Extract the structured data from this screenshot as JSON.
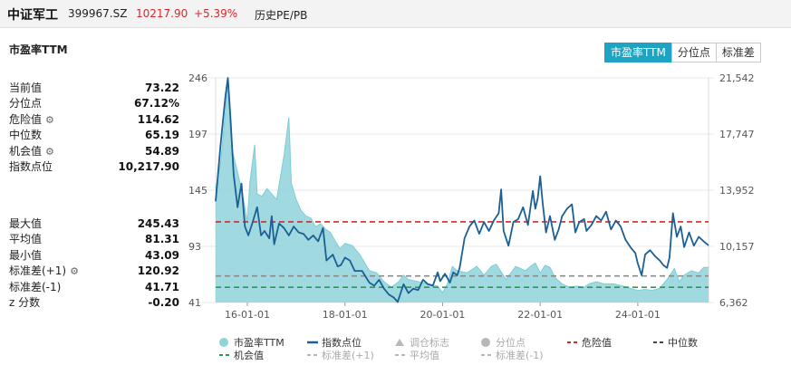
{
  "header": {
    "name": "中证军工",
    "code": "399967.SZ",
    "price": "10217.90",
    "change": "+5.39%",
    "history_link": "历史PE/PB",
    "up_color": "#d9262c"
  },
  "panel": {
    "title": "市盈率TTM",
    "tabs": [
      {
        "label": "市盈率TTM",
        "active": true
      },
      {
        "label": "分位点",
        "active": false
      },
      {
        "label": "标准差",
        "active": false
      }
    ]
  },
  "stats_top": [
    {
      "label": "当前值",
      "value": "73.22",
      "gear": false
    },
    {
      "label": "分位点",
      "value": "67.12%",
      "gear": false
    },
    {
      "label": "危险值",
      "value": "114.62",
      "gear": true
    },
    {
      "label": "中位数",
      "value": "65.19",
      "gear": false
    },
    {
      "label": "机会值",
      "value": "54.89",
      "gear": true
    },
    {
      "label": "指数点位",
      "value": "10,217.90",
      "gear": false
    }
  ],
  "stats_bottom": [
    {
      "label": "最大值",
      "value": "245.43",
      "gear": false
    },
    {
      "label": "平均值",
      "value": "81.31",
      "gear": false
    },
    {
      "label": "最小值",
      "value": "43.09",
      "gear": false
    },
    {
      "label": "标准差(+1)",
      "value": "120.92",
      "gear": true
    },
    {
      "label": "标准差(-1)",
      "value": "41.71",
      "gear": false
    },
    {
      "label": "z 分数",
      "value": "-0.20",
      "gear": false
    }
  ],
  "chart_data": {
    "type": "area",
    "x_ticks": [
      "16-01-01",
      "18-01-01",
      "20-01-01",
      "22-01-01",
      "24-01-01"
    ],
    "x_tick_years": [
      2016,
      2018,
      2020,
      2022,
      2024
    ],
    "x_range": [
      2015.35,
      2025.45
    ],
    "y_left_ticks": [
      "246",
      "197",
      "145",
      "93",
      "41"
    ],
    "y_left_range": [
      41,
      246
    ],
    "y_right_ticks": [
      "21,542",
      "17,747",
      "13,952",
      "10,157",
      "6,362"
    ],
    "y_right_range": [
      6362,
      21542
    ],
    "grid": "horizontal",
    "legend_position": "bottom",
    "colors": {
      "pe_fill": "#8fd3db",
      "pe_line": "#7ccdd6",
      "index_line": "#1b5f95",
      "danger": "#d12a2a",
      "median": "#8a8a8a",
      "opportunity": "#2e9a4e",
      "grid": "#e8e8e8",
      "disabled": "#b8b8b8"
    },
    "lines": {
      "danger": 114.62,
      "median": 65.19,
      "opportunity": 54.89
    },
    "series": [
      {
        "name": "市盈率TTM",
        "axis": "left",
        "points": [
          [
            2015.35,
            145
          ],
          [
            2015.45,
            168
          ],
          [
            2015.55,
            215
          ],
          [
            2015.6,
            246
          ],
          [
            2015.65,
            200
          ],
          [
            2015.7,
            178
          ],
          [
            2015.8,
            160
          ],
          [
            2015.9,
            140
          ],
          [
            2016.0,
            115
          ],
          [
            2016.05,
            150
          ],
          [
            2016.15,
            185
          ],
          [
            2016.2,
            140
          ],
          [
            2016.3,
            138
          ],
          [
            2016.4,
            145
          ],
          [
            2016.5,
            140
          ],
          [
            2016.6,
            135
          ],
          [
            2016.75,
            175
          ],
          [
            2016.85,
            210
          ],
          [
            2016.9,
            150
          ],
          [
            2017.0,
            135
          ],
          [
            2017.1,
            125
          ],
          [
            2017.2,
            120
          ],
          [
            2017.3,
            118
          ],
          [
            2017.4,
            110
          ],
          [
            2017.5,
            113
          ],
          [
            2017.6,
            108
          ],
          [
            2017.7,
            105
          ],
          [
            2017.8,
            97
          ],
          [
            2017.9,
            90
          ],
          [
            2018.0,
            95
          ],
          [
            2018.15,
            93
          ],
          [
            2018.3,
            85
          ],
          [
            2018.5,
            70
          ],
          [
            2018.65,
            68
          ],
          [
            2018.8,
            60
          ],
          [
            2018.95,
            55
          ],
          [
            2019.1,
            60
          ],
          [
            2019.2,
            66
          ],
          [
            2019.3,
            62
          ],
          [
            2019.5,
            60
          ],
          [
            2019.7,
            58
          ],
          [
            2019.9,
            56
          ],
          [
            2020.0,
            50
          ],
          [
            2020.1,
            58
          ],
          [
            2020.2,
            74
          ],
          [
            2020.3,
            70
          ],
          [
            2020.5,
            68
          ],
          [
            2020.7,
            74
          ],
          [
            2020.85,
            66
          ],
          [
            2021.0,
            74
          ],
          [
            2021.1,
            76
          ],
          [
            2021.3,
            62
          ],
          [
            2021.5,
            74
          ],
          [
            2021.7,
            70
          ],
          [
            2021.8,
            74
          ],
          [
            2021.9,
            77
          ],
          [
            2022.0,
            68
          ],
          [
            2022.1,
            75
          ],
          [
            2022.2,
            73
          ],
          [
            2022.3,
            64
          ],
          [
            2022.45,
            58
          ],
          [
            2022.6,
            55
          ],
          [
            2022.75,
            56
          ],
          [
            2022.9,
            55
          ],
          [
            2023.0,
            58
          ],
          [
            2023.15,
            60
          ],
          [
            2023.3,
            58
          ],
          [
            2023.5,
            58
          ],
          [
            2023.7,
            56
          ],
          [
            2023.85,
            54
          ],
          [
            2024.0,
            52
          ],
          [
            2024.15,
            53
          ],
          [
            2024.3,
            52
          ],
          [
            2024.45,
            54
          ],
          [
            2024.6,
            62
          ],
          [
            2024.75,
            72
          ],
          [
            2024.85,
            60
          ],
          [
            2024.95,
            66
          ],
          [
            2025.1,
            70
          ],
          [
            2025.25,
            68
          ],
          [
            2025.35,
            73
          ],
          [
            2025.45,
            73
          ]
        ]
      },
      {
        "name": "指数点位",
        "axis": "right",
        "points": [
          [
            2015.35,
            13200
          ],
          [
            2015.45,
            17000
          ],
          [
            2015.55,
            20300
          ],
          [
            2015.6,
            21542
          ],
          [
            2015.65,
            19000
          ],
          [
            2015.72,
            15000
          ],
          [
            2015.8,
            12800
          ],
          [
            2015.88,
            14400
          ],
          [
            2015.95,
            11500
          ],
          [
            2016.02,
            10900
          ],
          [
            2016.1,
            11700
          ],
          [
            2016.2,
            12800
          ],
          [
            2016.28,
            10900
          ],
          [
            2016.35,
            11200
          ],
          [
            2016.45,
            10700
          ],
          [
            2016.5,
            12200
          ],
          [
            2016.55,
            10300
          ],
          [
            2016.65,
            11700
          ],
          [
            2016.75,
            11400
          ],
          [
            2016.85,
            10900
          ],
          [
            2016.95,
            11500
          ],
          [
            2017.05,
            11100
          ],
          [
            2017.15,
            11000
          ],
          [
            2017.25,
            10600
          ],
          [
            2017.35,
            10900
          ],
          [
            2017.45,
            10500
          ],
          [
            2017.55,
            11400
          ],
          [
            2017.62,
            9200
          ],
          [
            2017.75,
            9600
          ],
          [
            2017.85,
            8800
          ],
          [
            2017.92,
            8900
          ],
          [
            2018.0,
            9400
          ],
          [
            2018.1,
            9200
          ],
          [
            2018.2,
            8500
          ],
          [
            2018.35,
            8500
          ],
          [
            2018.5,
            7700
          ],
          [
            2018.6,
            7500
          ],
          [
            2018.7,
            7900
          ],
          [
            2018.8,
            7300
          ],
          [
            2018.9,
            6900
          ],
          [
            2019.0,
            6700
          ],
          [
            2019.08,
            6400
          ],
          [
            2019.2,
            7600
          ],
          [
            2019.3,
            7000
          ],
          [
            2019.4,
            7300
          ],
          [
            2019.5,
            7200
          ],
          [
            2019.6,
            7900
          ],
          [
            2019.7,
            7600
          ],
          [
            2019.8,
            7500
          ],
          [
            2019.9,
            8400
          ],
          [
            2019.95,
            7800
          ],
          [
            2020.05,
            8300
          ],
          [
            2020.15,
            7700
          ],
          [
            2020.22,
            8400
          ],
          [
            2020.3,
            8200
          ],
          [
            2020.35,
            8700
          ],
          [
            2020.45,
            10700
          ],
          [
            2020.55,
            11500
          ],
          [
            2020.65,
            11900
          ],
          [
            2020.75,
            11000
          ],
          [
            2020.85,
            11800
          ],
          [
            2020.95,
            11200
          ],
          [
            2021.05,
            11900
          ],
          [
            2021.15,
            12400
          ],
          [
            2021.2,
            14000
          ],
          [
            2021.25,
            11200
          ],
          [
            2021.35,
            10200
          ],
          [
            2021.45,
            11800
          ],
          [
            2021.55,
            12000
          ],
          [
            2021.65,
            12800
          ],
          [
            2021.75,
            11600
          ],
          [
            2021.85,
            13900
          ],
          [
            2021.9,
            12700
          ],
          [
            2021.95,
            13400
          ],
          [
            2022.0,
            14900
          ],
          [
            2022.05,
            13100
          ],
          [
            2022.12,
            11100
          ],
          [
            2022.2,
            12200
          ],
          [
            2022.3,
            10600
          ],
          [
            2022.38,
            11300
          ],
          [
            2022.45,
            12200
          ],
          [
            2022.55,
            12700
          ],
          [
            2022.65,
            13000
          ],
          [
            2022.72,
            11100
          ],
          [
            2022.8,
            11800
          ],
          [
            2022.9,
            12000
          ],
          [
            2022.95,
            11200
          ],
          [
            2023.05,
            11600
          ],
          [
            2023.15,
            12200
          ],
          [
            2023.25,
            11900
          ],
          [
            2023.35,
            12500
          ],
          [
            2023.45,
            11300
          ],
          [
            2023.55,
            11900
          ],
          [
            2023.65,
            11500
          ],
          [
            2023.75,
            10600
          ],
          [
            2023.85,
            10100
          ],
          [
            2023.95,
            9700
          ],
          [
            2024.0,
            9000
          ],
          [
            2024.08,
            8200
          ],
          [
            2024.15,
            9600
          ],
          [
            2024.25,
            9900
          ],
          [
            2024.35,
            9500
          ],
          [
            2024.45,
            9200
          ],
          [
            2024.52,
            8900
          ],
          [
            2024.6,
            8700
          ],
          [
            2024.65,
            9400
          ],
          [
            2024.72,
            12400
          ],
          [
            2024.8,
            10800
          ],
          [
            2024.88,
            11500
          ],
          [
            2024.95,
            10100
          ],
          [
            2025.05,
            11100
          ],
          [
            2025.15,
            10200
          ],
          [
            2025.25,
            10800
          ],
          [
            2025.35,
            10500
          ],
          [
            2025.45,
            10218
          ]
        ]
      }
    ],
    "legend": [
      {
        "label": "市盈率TTM",
        "marker": "circle",
        "color": "#8fd3db",
        "enabled": true
      },
      {
        "label": "指数点位",
        "marker": "line",
        "color": "#1b5f95",
        "enabled": true
      },
      {
        "label": "调仓标志",
        "marker": "triangle",
        "color": "#b8b8b8",
        "enabled": false
      },
      {
        "label": "分位点",
        "marker": "circle",
        "color": "#b8b8b8",
        "enabled": false
      },
      {
        "label": "危险值",
        "marker": "dash",
        "color": "#d12a2a",
        "enabled": true
      },
      {
        "label": "中位数",
        "marker": "dash",
        "color": "#444444",
        "enabled": true
      },
      {
        "label": "机会值",
        "marker": "dash",
        "color": "#2e9a4e",
        "enabled": true
      },
      {
        "label": "标准差(+1)",
        "marker": "dash",
        "color": "#b8b8b8",
        "enabled": false
      },
      {
        "label": "平均值",
        "marker": "dash",
        "color": "#b8b8b8",
        "enabled": false
      },
      {
        "label": "标准差(-1)",
        "marker": "dash",
        "color": "#b8b8b8",
        "enabled": false
      }
    ]
  }
}
